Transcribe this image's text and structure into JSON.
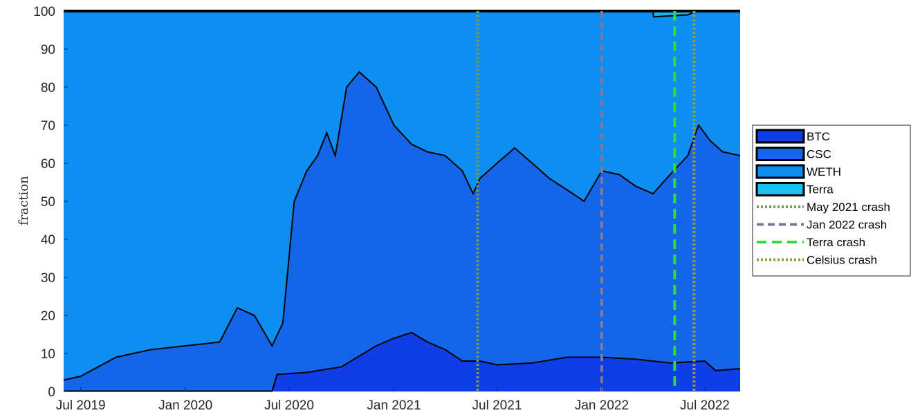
{
  "chart_data": {
    "type": "area",
    "ylabel": "fraction",
    "ylim": [
      0,
      100
    ],
    "yticks": [
      0,
      10,
      20,
      30,
      40,
      50,
      60,
      70,
      80,
      90,
      100
    ],
    "xlim": [
      "2019-06-01",
      "2022-09-01"
    ],
    "xticks": [
      {
        "date": "2019-07-01",
        "label": "Jul 2019"
      },
      {
        "date": "2020-01-01",
        "label": "Jan 2020"
      },
      {
        "date": "2020-07-01",
        "label": "Jul 2020"
      },
      {
        "date": "2021-01-01",
        "label": "Jan 2021"
      },
      {
        "date": "2021-07-01",
        "label": "Jul 2021"
      },
      {
        "date": "2022-01-01",
        "label": "Jan 2022"
      },
      {
        "date": "2022-07-01",
        "label": "Jul 2022"
      }
    ],
    "stacked": true,
    "series": [
      {
        "name": "BTC",
        "color": "#0f3ee6",
        "points": [
          [
            "2019-06-01",
            0.1
          ],
          [
            "2020-06-01",
            0.1
          ],
          [
            "2020-06-10",
            4.5
          ],
          [
            "2020-08-01",
            5
          ],
          [
            "2020-10-01",
            6.5
          ],
          [
            "2020-12-01",
            12
          ],
          [
            "2021-01-01",
            14
          ],
          [
            "2021-02-01",
            15.5
          ],
          [
            "2021-03-01",
            13
          ],
          [
            "2021-04-01",
            11
          ],
          [
            "2021-05-01",
            8
          ],
          [
            "2021-06-01",
            8
          ],
          [
            "2021-07-01",
            7
          ],
          [
            "2021-09-01",
            7.5
          ],
          [
            "2021-11-01",
            9
          ],
          [
            "2022-01-01",
            9
          ],
          [
            "2022-03-01",
            8.5
          ],
          [
            "2022-05-01",
            7.5
          ],
          [
            "2022-07-01",
            8
          ],
          [
            "2022-07-20",
            5.5
          ],
          [
            "2022-09-01",
            6
          ]
        ]
      },
      {
        "name": "CSC",
        "color": "#1565e8",
        "points": [
          [
            "2019-06-01",
            3
          ],
          [
            "2019-07-01",
            4
          ],
          [
            "2019-09-01",
            9
          ],
          [
            "2019-11-01",
            11
          ],
          [
            "2020-01-01",
            12
          ],
          [
            "2020-03-01",
            13
          ],
          [
            "2020-04-01",
            22
          ],
          [
            "2020-05-01",
            20
          ],
          [
            "2020-06-01",
            12
          ],
          [
            "2020-06-20",
            18
          ],
          [
            "2020-07-10",
            50
          ],
          [
            "2020-08-01",
            58
          ],
          [
            "2020-08-20",
            62
          ],
          [
            "2020-09-05",
            68
          ],
          [
            "2020-09-20",
            62
          ],
          [
            "2020-10-10",
            80
          ],
          [
            "2020-11-01",
            84
          ],
          [
            "2020-12-01",
            80
          ],
          [
            "2021-01-01",
            70
          ],
          [
            "2021-02-01",
            65
          ],
          [
            "2021-03-01",
            63
          ],
          [
            "2021-04-01",
            62
          ],
          [
            "2021-05-01",
            58
          ],
          [
            "2021-05-20",
            52
          ],
          [
            "2021-06-01",
            56
          ],
          [
            "2021-07-01",
            60
          ],
          [
            "2021-08-01",
            64
          ],
          [
            "2021-09-01",
            60
          ],
          [
            "2021-10-01",
            56
          ],
          [
            "2021-11-01",
            53
          ],
          [
            "2021-12-01",
            50
          ],
          [
            "2022-01-01",
            58
          ],
          [
            "2022-02-01",
            57
          ],
          [
            "2022-03-01",
            54
          ],
          [
            "2022-04-01",
            52
          ],
          [
            "2022-05-01",
            57
          ],
          [
            "2022-06-01",
            62
          ],
          [
            "2022-06-20",
            70
          ],
          [
            "2022-07-10",
            66
          ],
          [
            "2022-08-01",
            63
          ],
          [
            "2022-09-01",
            62
          ]
        ]
      },
      {
        "name": "WETH",
        "color": "#0d8ef0",
        "points": [
          [
            "2019-06-01",
            100
          ],
          [
            "2022-04-01",
            100
          ],
          [
            "2022-04-02",
            98.5
          ],
          [
            "2022-06-01",
            99
          ],
          [
            "2022-06-15",
            100
          ],
          [
            "2022-09-01",
            100
          ]
        ]
      },
      {
        "name": "Terra",
        "color": "#1cc0f0",
        "points": [
          [
            "2019-06-01",
            100
          ],
          [
            "2022-04-01",
            100
          ],
          [
            "2022-06-15",
            100
          ],
          [
            "2022-09-01",
            100
          ]
        ]
      }
    ],
    "event_lines": [
      {
        "name": "May 2021 crash",
        "date": "2021-05-28",
        "color": "#6e9a5a",
        "style": "dotted"
      },
      {
        "name": "Jan 2022 crash",
        "date": "2022-01-01",
        "color": "#7a7a9a",
        "style": "dashed"
      },
      {
        "name": "Terra crash",
        "date": "2022-05-09",
        "color": "#33dd33",
        "style": "dashed"
      },
      {
        "name": "Celsius crash",
        "date": "2022-06-12",
        "color": "#9a9a44",
        "style": "dotted"
      }
    ],
    "legend_placement": "right",
    "background_color": "#1ab0f5"
  }
}
